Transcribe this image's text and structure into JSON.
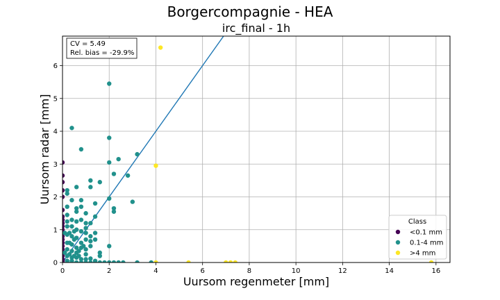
{
  "chart_data": {
    "type": "scatter",
    "suptitle": "Borgercompagnie - HEA",
    "title": "irc_final - 1h",
    "xlabel": "Uursom regenmeter [mm]",
    "ylabel": "Uursom radar [mm]",
    "xlim": [
      0,
      16.6
    ],
    "ylim": [
      0,
      6.9
    ],
    "xticks": [
      "0",
      "2",
      "4",
      "6",
      "8",
      "10",
      "12",
      "14",
      "16"
    ],
    "yticks": [
      "0",
      "1",
      "2",
      "3",
      "4",
      "5",
      "6"
    ],
    "grid": true,
    "stats": {
      "cv": "CV = 5.49",
      "bias": "Rel. bias = -29.9%"
    },
    "fit_line": {
      "x": [
        0,
        6.9
      ],
      "y": [
        0,
        6.9
      ],
      "color": "#1f77b4"
    },
    "legend": {
      "title": "Class",
      "position": "lower-right"
    },
    "series": [
      {
        "name": "<0.1 mm",
        "color": "#440154",
        "points": [
          [
            0,
            3.05
          ],
          [
            0,
            2.65
          ],
          [
            0,
            2.45
          ],
          [
            0,
            2.2
          ],
          [
            0,
            2.0
          ],
          [
            0,
            1.6
          ],
          [
            0,
            1.4
          ],
          [
            0,
            1.3
          ],
          [
            0,
            1.2
          ],
          [
            0,
            1.1
          ],
          [
            0,
            1.0
          ],
          [
            0,
            0.9
          ],
          [
            0,
            0.8
          ],
          [
            0,
            0.7
          ],
          [
            0,
            0.6
          ],
          [
            0,
            0.5
          ],
          [
            0,
            0.4
          ],
          [
            0,
            0.3
          ],
          [
            0,
            0.2
          ],
          [
            0,
            0.1
          ],
          [
            0,
            0.05
          ],
          [
            0,
            0
          ]
        ]
      },
      {
        "name": "0.1-4 mm",
        "color": "#21918c",
        "points": [
          [
            2.0,
            5.45
          ],
          [
            0.4,
            4.1
          ],
          [
            2.0,
            3.8
          ],
          [
            0.8,
            3.45
          ],
          [
            3.2,
            3.3
          ],
          [
            2.4,
            3.15
          ],
          [
            2.0,
            3.05
          ],
          [
            2.8,
            2.65
          ],
          [
            2.2,
            2.7
          ],
          [
            1.2,
            2.5
          ],
          [
            1.6,
            2.45
          ],
          [
            0.6,
            2.3
          ],
          [
            1.2,
            2.3
          ],
          [
            0.2,
            2.2
          ],
          [
            0.2,
            2.1
          ],
          [
            2.0,
            1.95
          ],
          [
            3.0,
            1.85
          ],
          [
            0.4,
            1.9
          ],
          [
            0.8,
            1.9
          ],
          [
            1.4,
            1.8
          ],
          [
            0.2,
            1.7
          ],
          [
            0.6,
            1.65
          ],
          [
            0.8,
            1.7
          ],
          [
            2.2,
            1.65
          ],
          [
            2.2,
            1.55
          ],
          [
            0.6,
            1.55
          ],
          [
            1.0,
            1.5
          ],
          [
            0.2,
            1.45
          ],
          [
            1.4,
            1.4
          ],
          [
            0.4,
            1.3
          ],
          [
            0.2,
            1.25
          ],
          [
            0.6,
            1.25
          ],
          [
            0.8,
            1.3
          ],
          [
            1.0,
            1.2
          ],
          [
            1.2,
            1.2
          ],
          [
            0.2,
            1.1
          ],
          [
            0.4,
            1.1
          ],
          [
            1.0,
            1.05
          ],
          [
            0.6,
            1.0
          ],
          [
            0.8,
            0.95
          ],
          [
            1.0,
            0.9
          ],
          [
            1.4,
            0.9
          ],
          [
            0.2,
            0.85
          ],
          [
            0.4,
            0.8
          ],
          [
            1.2,
            0.8
          ],
          [
            0.6,
            0.75
          ],
          [
            1.0,
            0.7
          ],
          [
            1.4,
            0.7
          ],
          [
            0.8,
            0.6
          ],
          [
            1.2,
            0.65
          ],
          [
            0.2,
            0.6
          ],
          [
            0.4,
            0.55
          ],
          [
            1.2,
            0.5
          ],
          [
            2.0,
            0.5
          ],
          [
            0.6,
            0.45
          ],
          [
            0.8,
            0.45
          ],
          [
            1.0,
            0.4
          ],
          [
            0.2,
            0.4
          ],
          [
            0.4,
            0.35
          ],
          [
            1.6,
            0.3
          ],
          [
            0.6,
            0.3
          ],
          [
            1.0,
            0.25
          ],
          [
            1.6,
            0.2
          ],
          [
            0.2,
            0.2
          ],
          [
            0.4,
            0.15
          ],
          [
            0.6,
            0.15
          ],
          [
            0.8,
            0.1
          ],
          [
            1.0,
            0.1
          ],
          [
            1.2,
            0.12
          ],
          [
            0.2,
            0.05
          ],
          [
            0.4,
            0.05
          ],
          [
            1.4,
            0.05
          ],
          [
            0.1,
            0.3
          ],
          [
            0.3,
            0.25
          ],
          [
            0.5,
            0.2
          ],
          [
            0.7,
            0.2
          ],
          [
            0.3,
            0.6
          ],
          [
            0.5,
            0.7
          ],
          [
            0.1,
            0.9
          ],
          [
            0.3,
            0.9
          ],
          [
            0.7,
            0.35
          ],
          [
            0.9,
            0.5
          ],
          [
            0.5,
            0.95
          ],
          [
            0.2,
            0
          ],
          [
            0.4,
            0
          ],
          [
            0.6,
            0
          ],
          [
            0.8,
            0
          ],
          [
            1.0,
            0
          ],
          [
            1.2,
            0
          ],
          [
            1.4,
            0
          ],
          [
            1.6,
            0
          ],
          [
            1.8,
            0
          ],
          [
            2.0,
            0
          ],
          [
            2.2,
            0
          ],
          [
            2.4,
            0
          ],
          [
            2.6,
            0
          ],
          [
            3.2,
            0
          ],
          [
            3.8,
            0
          ]
        ]
      },
      {
        "name": ">4 mm",
        "color": "#fde725",
        "points": [
          [
            4.2,
            6.55
          ],
          [
            4.0,
            2.95
          ],
          [
            4.0,
            0
          ],
          [
            5.4,
            0
          ],
          [
            7.0,
            0
          ],
          [
            7.2,
            0
          ],
          [
            7.4,
            0
          ],
          [
            15.8,
            0
          ]
        ]
      }
    ]
  }
}
